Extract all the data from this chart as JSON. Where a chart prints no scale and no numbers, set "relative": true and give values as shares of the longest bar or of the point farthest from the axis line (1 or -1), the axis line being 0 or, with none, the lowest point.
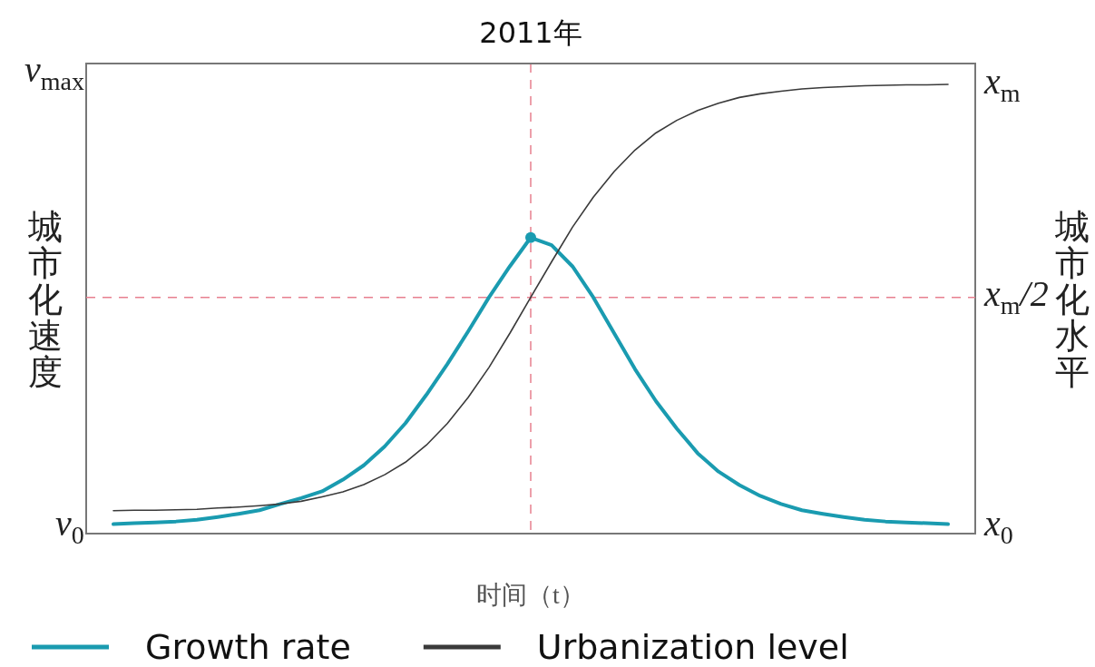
{
  "chart_data": {
    "type": "line",
    "title": "2011年",
    "xlabel": "时间（t）",
    "ylabel": "城市化速度",
    "y2label": "城市化水平",
    "categories": [
      null,
      null,
      null,
      null,
      null,
      null,
      null,
      null,
      null,
      null,
      null,
      null,
      null,
      null,
      null,
      null,
      null,
      null,
      null,
      null,
      null,
      null,
      null,
      null,
      null,
      null,
      null,
      null,
      null,
      null,
      null,
      null,
      null,
      null,
      null,
      null,
      null,
      null,
      null,
      null,
      null
    ],
    "relative": true,
    "legend": "bottom",
    "annotations": [
      "v$_{max}$",
      "v$_{0}$",
      "x$_{m}$",
      "x$_{m}$/2",
      "x$_{0}$"
    ],
    "series": [
      {
        "name": "Growth rate",
        "color": "#1a9bb0",
        "values": [
          0.021,
          0.023,
          0.025,
          0.027,
          0.031,
          0.037,
          0.044,
          0.052,
          0.066,
          0.079,
          0.094,
          0.12,
          0.152,
          0.194,
          0.246,
          0.309,
          0.377,
          0.45,
          0.526,
          0.595,
          0.659,
          0.642,
          0.595,
          0.526,
          0.446,
          0.366,
          0.295,
          0.234,
          0.179,
          0.138,
          0.108,
          0.084,
          0.066,
          0.052,
          0.044,
          0.037,
          0.031,
          0.027,
          0.025,
          0.023,
          0.021
        ]
      },
      {
        "name": "Urbanization level",
        "color": "#3a3a3a",
        "values": [
          0.051,
          0.052,
          0.052,
          0.053,
          0.054,
          0.057,
          0.059,
          0.062,
          0.066,
          0.072,
          0.082,
          0.093,
          0.109,
          0.131,
          0.159,
          0.197,
          0.245,
          0.303,
          0.37,
          0.446,
          0.526,
          0.605,
          0.682,
          0.749,
          0.806,
          0.854,
          0.892,
          0.92,
          0.942,
          0.958,
          0.971,
          0.979,
          0.985,
          0.99,
          0.993,
          0.995,
          0.997,
          0.998,
          0.999,
          0.999,
          1
        ]
      }
    ],
    "ref_lines": [
      {
        "axis": "y",
        "value": 0.526,
        "color": "#e8808f",
        "line_style": "dashed"
      }
    ]
  }
}
